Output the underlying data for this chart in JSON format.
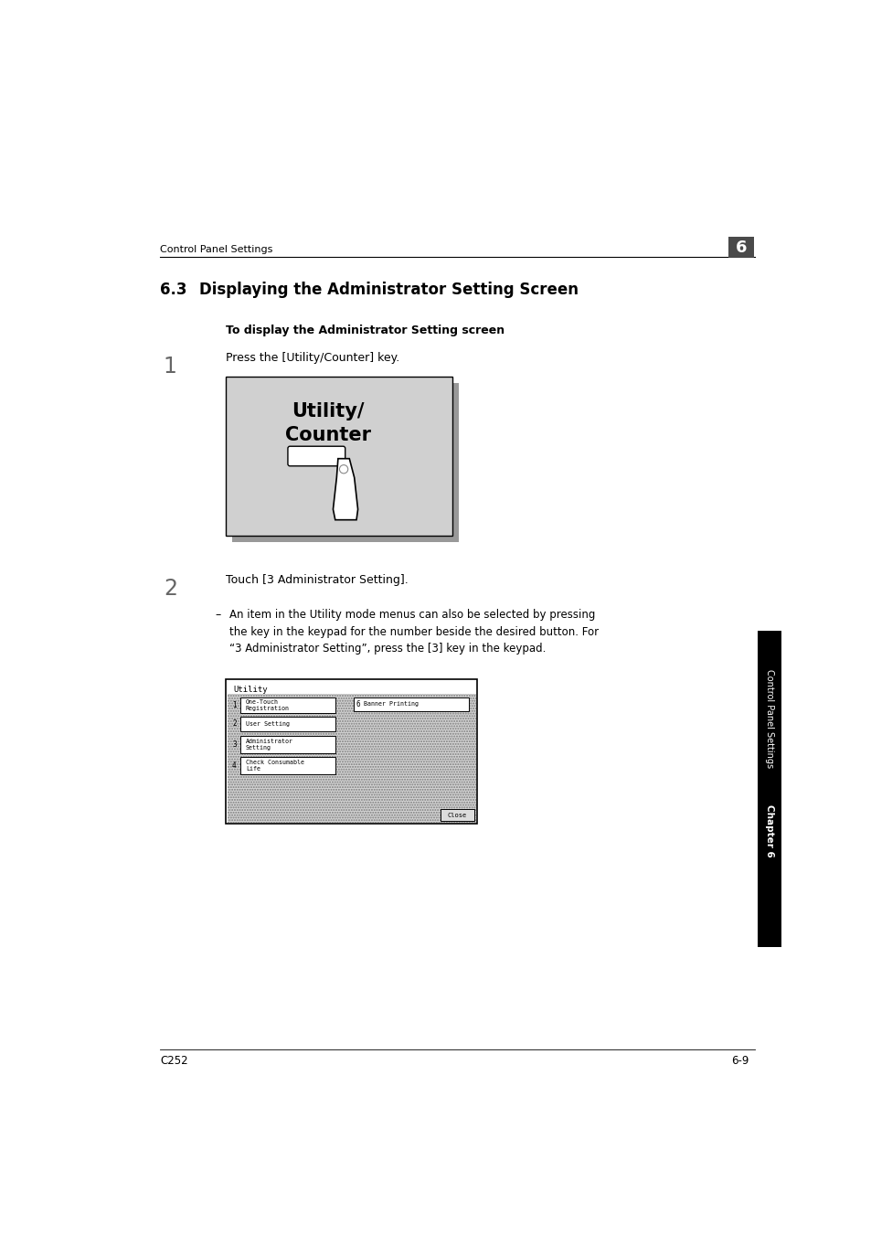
{
  "bg_color": "#ffffff",
  "page_width": 9.54,
  "page_height": 13.51,
  "header_text": "Control Panel Settings",
  "header_chapter_num": "6",
  "chapter_title_num": "6.3",
  "chapter_title_text": "Displaying the Administrator Setting Screen",
  "bold_subtitle": "To display the Administrator Setting screen",
  "step1_num": "1",
  "step1_text": "Press the [Utility/Counter] key.",
  "step2_num": "2",
  "step2_text": "Touch [3 Administrator Setting].",
  "note_dash": "–",
  "note_text": "An item in the Utility mode menus can also be selected by pressing\nthe key in the keypad for the number beside the desired button. For\n“3 Administrator Setting”, press the [3] key in the keypad.",
  "sidebar_text": "Control Panel Settings",
  "sidebar_chapter": "Chapter 6",
  "footer_left": "C252",
  "footer_right": "6-9",
  "utility_counter_label_line1": "Utility/",
  "utility_counter_label_line2": "Counter",
  "gray_image_color": "#d0d0d0",
  "shadow_color": "#999999",
  "menu_dot_color": "#888888"
}
